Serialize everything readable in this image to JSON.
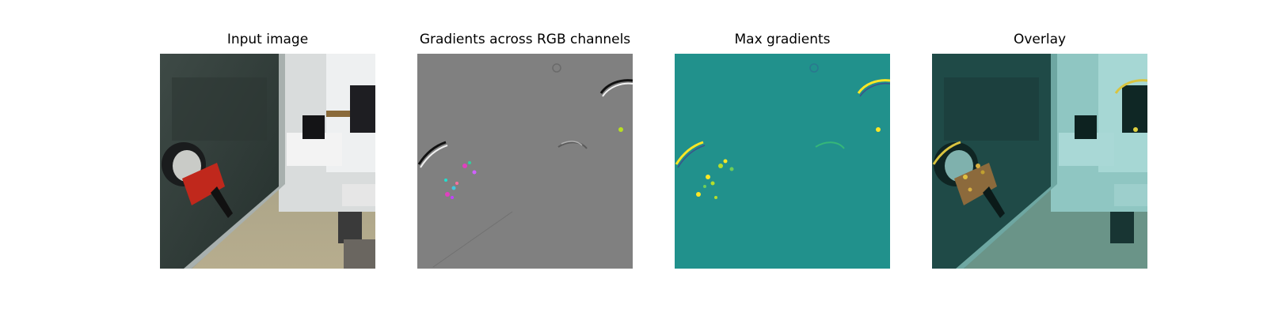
{
  "figure": {
    "panels": [
      {
        "title": "Input image",
        "kind": "input-photo"
      },
      {
        "title": "Gradients across RGB channels",
        "kind": "rgb-gradient-map"
      },
      {
        "title": "Max gradients",
        "kind": "max-gradient-map"
      },
      {
        "title": "Overlay",
        "kind": "overlay"
      }
    ]
  },
  "colors": {
    "figure_background": "#ffffff",
    "gradient_background": "#808080",
    "max_gradient_background": "#21918c",
    "highlight_yellow": "#fde725",
    "highlight_green": "#5ec962",
    "object_red": "#c0281c",
    "overlay_tint": "#2a7f7a"
  }
}
